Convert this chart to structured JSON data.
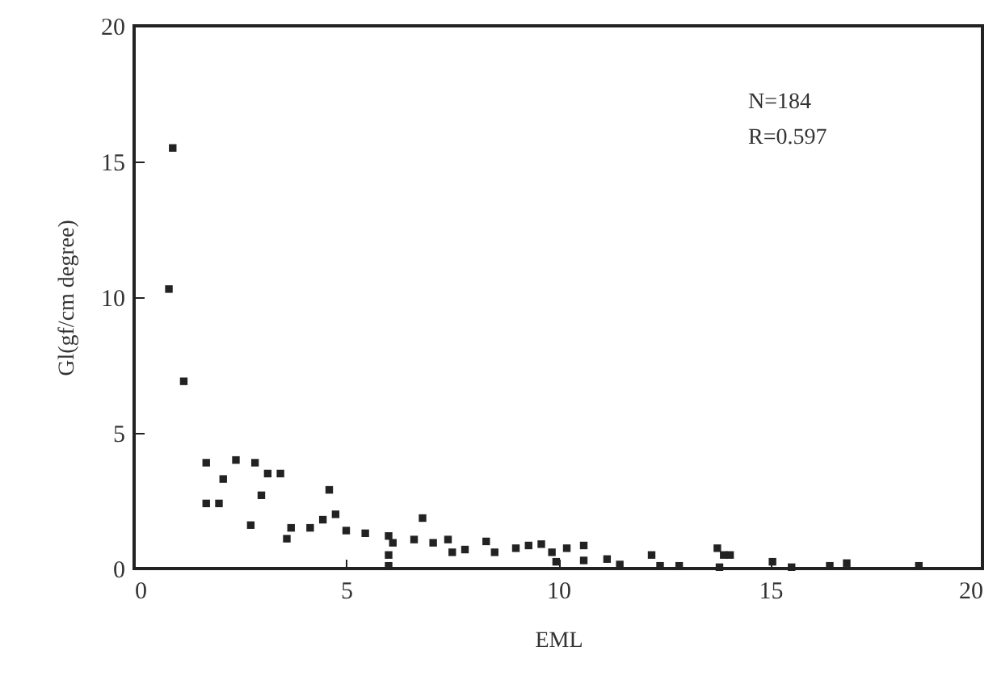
{
  "chart_data": {
    "type": "scatter",
    "xlabel": "EML",
    "ylabel": "Gl(gf/cm degree)",
    "annotations": [
      "N=184",
      "R=0.597"
    ],
    "xlim": [
      0,
      20
    ],
    "xticks": [
      0,
      5,
      10,
      15,
      20
    ],
    "ylim": [
      0,
      20
    ],
    "yticks": [
      0,
      5,
      10,
      15,
      20
    ],
    "grid": false,
    "marker": "square",
    "series": [
      {
        "color": "#222222",
        "x": [
          0.91,
          0.82,
          1.17,
          1.7,
          2.1,
          2.4,
          1.7,
          2.0,
          2.85,
          3.15,
          3.45,
          3.0,
          2.75,
          3.7,
          3.6,
          4.15,
          4.6,
          4.45,
          4.75,
          5.0,
          5.45,
          6.0,
          6.0,
          6.0,
          6.1,
          6.8,
          6.6,
          7.05,
          7.4,
          7.5,
          7.8,
          8.3,
          8.5,
          9.0,
          9.3,
          9.6,
          9.85,
          9.95,
          10.2,
          10.6,
          10.6,
          11.15,
          11.45,
          12.2,
          12.4,
          12.85,
          13.75,
          13.9,
          13.8,
          14.05,
          15.05,
          15.5,
          16.4,
          16.8,
          18.5
        ],
        "values": [
          15.5,
          10.3,
          6.9,
          3.9,
          3.3,
          4.0,
          2.4,
          2.4,
          3.9,
          3.5,
          3.5,
          2.7,
          1.6,
          1.5,
          1.1,
          1.5,
          2.9,
          1.8,
          2.0,
          1.4,
          1.3,
          1.2,
          0.5,
          0.1,
          0.95,
          1.86,
          1.07,
          0.95,
          1.07,
          0.6,
          0.7,
          1.0,
          0.6,
          0.75,
          0.85,
          0.9,
          0.6,
          0.25,
          0.75,
          0.85,
          0.3,
          0.35,
          0.15,
          0.5,
          0.1,
          0.1,
          0.75,
          0.5,
          0.05,
          0.5,
          0.25,
          0.05,
          0.1,
          0.2,
          0.1
        ]
      }
    ]
  }
}
